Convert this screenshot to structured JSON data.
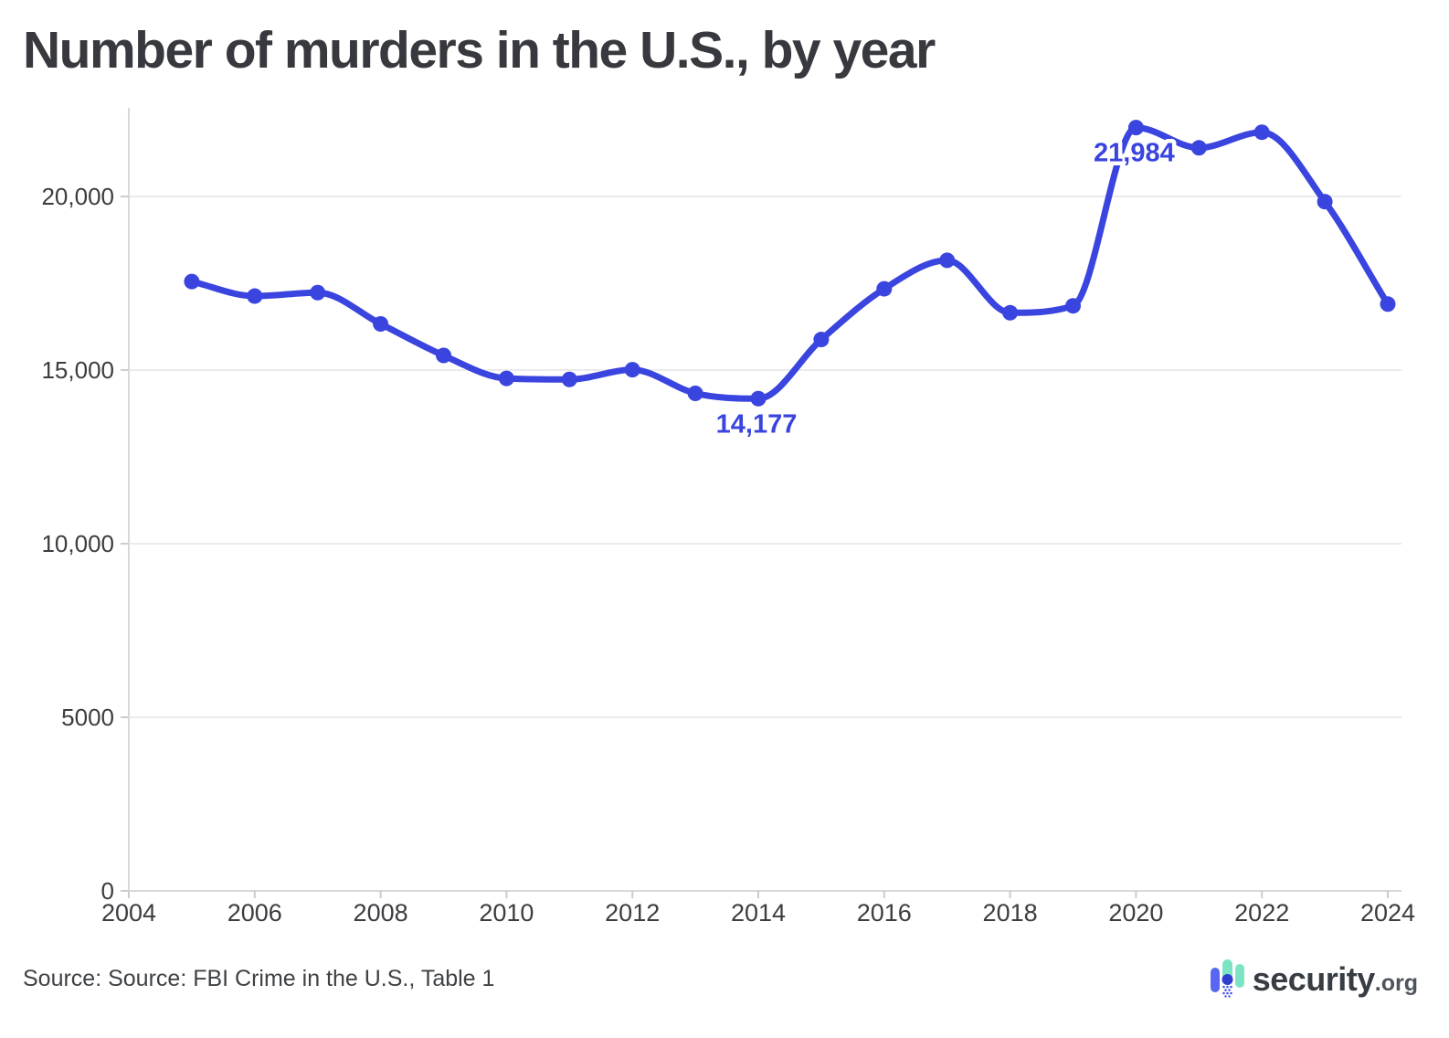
{
  "title": "Number of murders in the U.S., by year",
  "source": "Source: Source: FBI Crime in the U.S., Table 1",
  "logo": {
    "brand": "security",
    "suffix": ".org"
  },
  "chart_data": {
    "type": "line",
    "title": "Number of murders in the U.S., by year",
    "xlabel": "",
    "ylabel": "",
    "x": [
      2005,
      2006,
      2007,
      2008,
      2009,
      2010,
      2011,
      2012,
      2013,
      2014,
      2015,
      2016,
      2017,
      2018,
      2019,
      2020,
      2021,
      2022,
      2023,
      2024
    ],
    "series": [
      {
        "name": "Murders",
        "color": "#3a44df",
        "values": [
          17550,
          17130,
          17230,
          16330,
          15420,
          14760,
          14730,
          15010,
          14330,
          14177,
          15880,
          17340,
          18160,
          16650,
          16850,
          21984,
          21400,
          21850,
          19850,
          16900
        ]
      }
    ],
    "annotations": [
      {
        "x": 2014,
        "label": "14,177"
      },
      {
        "x": 2020,
        "label": "21,984"
      }
    ],
    "x_ticks": [
      2004,
      2006,
      2008,
      2010,
      2012,
      2014,
      2016,
      2018,
      2020,
      2022,
      2024
    ],
    "y_ticks": [
      {
        "value": 0,
        "label": "0"
      },
      {
        "value": 5000,
        "label": "5000"
      },
      {
        "value": 10000,
        "label": "10,000"
      },
      {
        "value": 15000,
        "label": "15,000"
      },
      {
        "value": 20000,
        "label": "20,000"
      }
    ],
    "xlim": [
      2004,
      2024.35
    ],
    "ylim": [
      0,
      22500
    ],
    "grid": "horizontal",
    "legend": "none",
    "colors": {
      "line": "#3a44df",
      "marker": "#3a44df",
      "annotation_text": "#3a44df",
      "gridline": "#ebebeb",
      "axis_line": "#d8d8d8",
      "tick_mark": "#cccccc",
      "tick_text": "#3b3d40"
    }
  }
}
